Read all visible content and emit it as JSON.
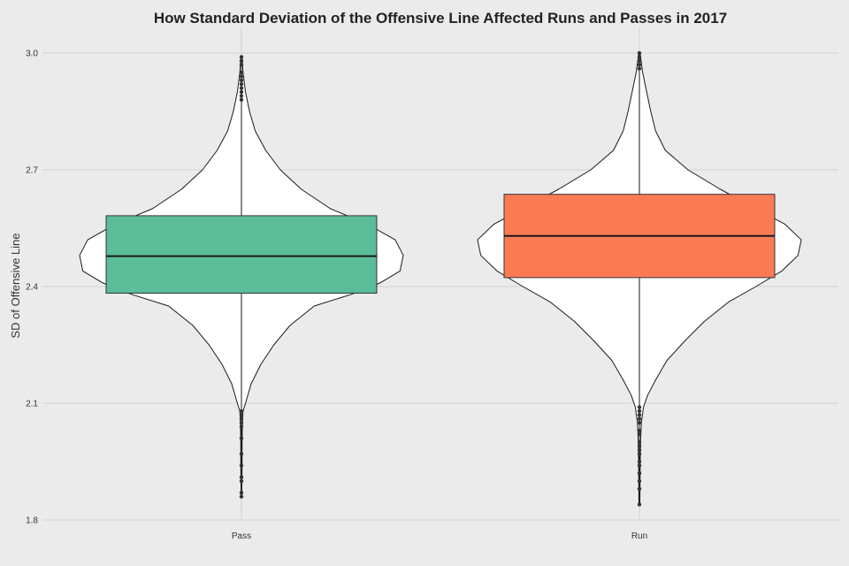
{
  "chart_data": {
    "type": "violin_box",
    "title": "How Standard Deviation of the Offensive Line Affected Runs and Passes in 2017",
    "xlabel": "",
    "ylabel": "SD of Offensive Line",
    "ylim": [
      1.8,
      3.0
    ],
    "y_ticks": [
      "1.8",
      "2.1",
      "2.4",
      "2.7",
      "3.0"
    ],
    "grid": true,
    "categories": [
      "Pass",
      "Run"
    ],
    "series": [
      {
        "category": "Pass",
        "color": "#5bbd99",
        "box": {
          "q1": 2.383,
          "median": 2.478,
          "q3": 2.582
        },
        "whisker": [
          1.86,
          2.99
        ],
        "density": [
          [
            2.99,
            0.003
          ],
          [
            2.95,
            0.01
          ],
          [
            2.9,
            0.025
          ],
          [
            2.85,
            0.05
          ],
          [
            2.8,
            0.085
          ],
          [
            2.75,
            0.15
          ],
          [
            2.7,
            0.24
          ],
          [
            2.65,
            0.37
          ],
          [
            2.6,
            0.55
          ],
          [
            2.56,
            0.78
          ],
          [
            2.52,
            0.95
          ],
          [
            2.48,
            1.0
          ],
          [
            2.44,
            0.98
          ],
          [
            2.41,
            0.86
          ],
          [
            2.38,
            0.68
          ],
          [
            2.35,
            0.45
          ],
          [
            2.3,
            0.3
          ],
          [
            2.25,
            0.2
          ],
          [
            2.2,
            0.12
          ],
          [
            2.15,
            0.06
          ],
          [
            2.1,
            0.025
          ],
          [
            2.08,
            0.01
          ],
          [
            2.05,
            0.006
          ],
          [
            2.0,
            0.004
          ],
          [
            1.95,
            0.004
          ],
          [
            1.9,
            0.003
          ],
          [
            1.86,
            0.002
          ]
        ],
        "outliers": [
          1.86,
          1.87,
          1.9,
          1.91,
          1.94,
          1.97,
          2.01,
          2.04,
          2.05,
          2.06,
          2.07,
          2.08,
          2.88,
          2.89,
          2.9,
          2.91,
          2.92,
          2.93,
          2.94,
          2.95,
          2.97,
          2.98,
          2.99
        ]
      },
      {
        "category": "Run",
        "color": "#fa7b53",
        "box": {
          "q1": 2.423,
          "median": 2.53,
          "q3": 2.637
        },
        "whisker": [
          1.84,
          3.0
        ],
        "density": [
          [
            3.0,
            0.004
          ],
          [
            2.95,
            0.02
          ],
          [
            2.9,
            0.045
          ],
          [
            2.85,
            0.07
          ],
          [
            2.8,
            0.1
          ],
          [
            2.75,
            0.16
          ],
          [
            2.7,
            0.3
          ],
          [
            2.65,
            0.5
          ],
          [
            2.6,
            0.72
          ],
          [
            2.56,
            0.9
          ],
          [
            2.52,
            1.0
          ],
          [
            2.48,
            0.98
          ],
          [
            2.44,
            0.88
          ],
          [
            2.4,
            0.72
          ],
          [
            2.36,
            0.55
          ],
          [
            2.31,
            0.4
          ],
          [
            2.26,
            0.28
          ],
          [
            2.21,
            0.17
          ],
          [
            2.16,
            0.1
          ],
          [
            2.12,
            0.05
          ],
          [
            2.09,
            0.025
          ],
          [
            2.05,
            0.012
          ],
          [
            2.0,
            0.007
          ],
          [
            1.95,
            0.005
          ],
          [
            1.9,
            0.004
          ],
          [
            1.84,
            0.003
          ]
        ],
        "outliers": [
          1.84,
          1.88,
          1.9,
          1.92,
          1.94,
          1.95,
          1.97,
          1.98,
          1.99,
          2.0,
          2.02,
          2.03,
          2.05,
          2.06,
          2.07,
          2.08,
          2.09,
          2.96,
          2.97,
          2.98,
          2.99,
          3.0
        ]
      }
    ]
  }
}
